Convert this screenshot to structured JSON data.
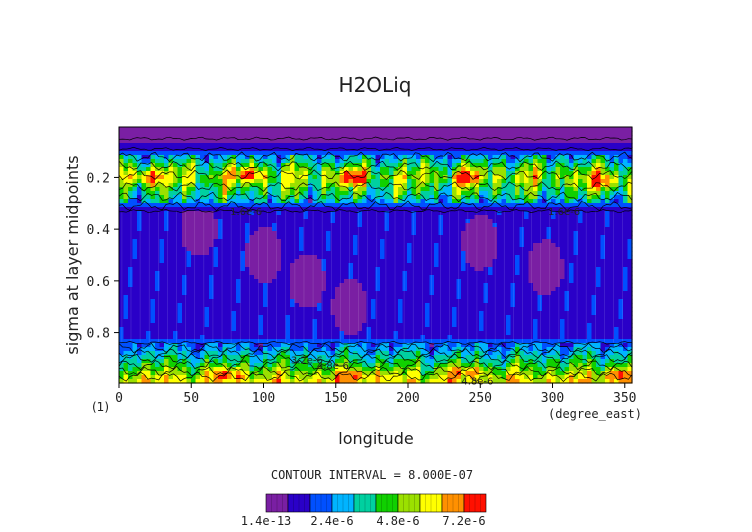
{
  "chart_data": {
    "type": "heatmap",
    "title": "H2OLiq",
    "xlabel": "longitude",
    "ylabel": "sigma at layer midpoints",
    "x_units": "(degree_east)",
    "corner_label": "(1)",
    "xlim": [
      0,
      355
    ],
    "ylim": [
      0.995,
      0.005
    ],
    "x_ticks": [
      0,
      50,
      100,
      150,
      200,
      250,
      300,
      350
    ],
    "x_tick_labels": [
      "0",
      "50",
      "100",
      "150",
      "200",
      "250",
      "300",
      "350"
    ],
    "y_ticks": [
      0.2,
      0.4,
      0.6,
      0.8
    ],
    "y_tick_labels": [
      "0.2",
      "0.4",
      "0.6",
      "0.8"
    ],
    "contour_interval_text": "CONTOUR INTERVAL = 8.000E-07",
    "contour_interval": 8e-07,
    "color_scale": {
      "min": 1.4e-13,
      "max": 8e-06,
      "levels": 10,
      "tick_labels": [
        "1.4e-13",
        "2.4e-6",
        "4.8e-6",
        "7.2e-6"
      ],
      "tick_values": [
        1.4e-13,
        2.4e-06,
        4.8e-06,
        7.2e-06
      ],
      "colors": [
        "#7a1fa3",
        "#2a00c8",
        "#0050ff",
        "#00b4ff",
        "#00d0a0",
        "#10d000",
        "#9be000",
        "#ffff00",
        "#ff9000",
        "#ff1000"
      ]
    },
    "contour_labels": [
      {
        "text": "1.6e-6",
        "lon": 88,
        "sigma": 0.33
      },
      {
        "text": "1.6e-6",
        "lon": 308,
        "sigma": 0.33
      },
      {
        "text": "3.2e-6",
        "lon": 130,
        "sigma": 0.905
      },
      {
        "text": "4.8e-6",
        "lon": 148,
        "sigma": 0.925
      },
      {
        "text": "4.8e-6",
        "lon": 248,
        "sigma": 0.985
      }
    ],
    "vertical_profile_description_points": {
      "sigma": [
        0.005,
        0.05,
        0.09,
        0.12,
        0.16,
        0.2,
        0.24,
        0.28,
        0.31,
        0.33,
        0.4,
        0.6,
        0.8,
        0.84,
        0.87,
        0.9,
        0.93,
        0.96,
        0.985
      ],
      "level_index": [
        0,
        0,
        1,
        3,
        5,
        6,
        5,
        4,
        2,
        1,
        1,
        1,
        1,
        2,
        3,
        4,
        5,
        6,
        7
      ]
    }
  }
}
